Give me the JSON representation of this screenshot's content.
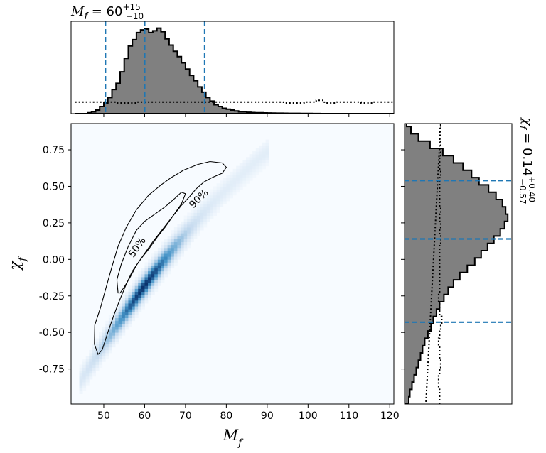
{
  "chart_data": [
    {
      "panel": "joint",
      "type": "heatmap",
      "xlabel": "M_f",
      "ylabel": "χ_f",
      "xlim": [
        42,
        121
      ],
      "ylim": [
        -0.99,
        0.93
      ],
      "xticks": [
        "50",
        "60",
        "70",
        "80",
        "90",
        "100",
        "110",
        "120"
      ],
      "yticks": [
        "0.75",
        "0.50",
        "0.25",
        "0.00",
        "-0.25",
        "-0.50",
        "-0.75"
      ],
      "colormap": "Blues",
      "contours": [
        {
          "label": "50%",
          "points": [
            [
              53.5,
              -0.23
            ],
            [
              53.2,
              -0.14
            ],
            [
              54.3,
              -0.03
            ],
            [
              56,
              0.09
            ],
            [
              58,
              0.2
            ],
            [
              60,
              0.26
            ],
            [
              62.5,
              0.31
            ],
            [
              65,
              0.36
            ],
            [
              67.5,
              0.42
            ],
            [
              69,
              0.46
            ],
            [
              70,
              0.45
            ],
            [
              69,
              0.38
            ],
            [
              67,
              0.3
            ],
            [
              64.5,
              0.21
            ],
            [
              62,
              0.12
            ],
            [
              60,
              0.04
            ],
            [
              58,
              -0.04
            ],
            [
              56.5,
              -0.12
            ],
            [
              55,
              -0.19
            ],
            [
              54,
              -0.23
            ]
          ]
        },
        {
          "label": "90%",
          "points": [
            [
              48.6,
              -0.65
            ],
            [
              47.7,
              -0.58
            ],
            [
              47.8,
              -0.45
            ],
            [
              49.2,
              -0.33
            ],
            [
              50.5,
              -0.2
            ],
            [
              52,
              -0.05
            ],
            [
              53.5,
              0.09
            ],
            [
              55.5,
              0.22
            ],
            [
              58,
              0.34
            ],
            [
              61,
              0.44
            ],
            [
              64,
              0.51
            ],
            [
              66.5,
              0.56
            ],
            [
              69.5,
              0.61
            ],
            [
              73,
              0.65
            ],
            [
              76,
              0.67
            ],
            [
              79,
              0.66
            ],
            [
              80,
              0.63
            ],
            [
              79,
              0.59
            ],
            [
              76.5,
              0.56
            ],
            [
              74.5,
              0.53
            ],
            [
              72.5,
              0.48
            ],
            [
              71,
              0.43
            ],
            [
              69,
              0.37
            ],
            [
              67,
              0.3
            ],
            [
              65,
              0.22
            ],
            [
              63,
              0.15
            ],
            [
              61,
              0.07
            ],
            [
              59,
              0
            ],
            [
              57,
              -0.08
            ],
            [
              55.5,
              -0.17
            ],
            [
              54,
              -0.27
            ],
            [
              52.5,
              -0.38
            ],
            [
              51,
              -0.5
            ],
            [
              49.6,
              -0.62
            ]
          ]
        }
      ]
    },
    {
      "panel": "top-marginal",
      "type": "histogram",
      "variable": "M_f",
      "bin_edges": [
        43,
        44,
        45,
        46,
        47,
        48,
        49,
        50,
        51,
        52,
        53,
        54,
        55,
        56,
        57,
        58,
        59,
        60,
        61,
        62,
        63,
        64,
        65,
        66,
        67,
        68,
        69,
        70,
        71,
        72,
        73,
        74,
        75,
        76,
        77,
        78,
        79,
        80,
        81,
        82,
        83,
        84,
        85,
        86,
        87,
        88,
        89,
        90,
        91,
        92,
        93,
        94,
        95,
        96,
        97,
        98,
        99,
        100,
        101,
        102,
        103,
        104,
        105,
        106,
        107,
        108,
        109,
        110,
        111,
        112,
        113,
        114,
        115,
        116,
        117,
        118,
        119,
        120,
        121
      ],
      "values": [
        0,
        0,
        0,
        1,
        2,
        4,
        8,
        12,
        18,
        27,
        34,
        47,
        62,
        76,
        83,
        91,
        94,
        95,
        91,
        93,
        96,
        92,
        84,
        77,
        70,
        64,
        57,
        50,
        43,
        37,
        30,
        24,
        18,
        14,
        10,
        8,
        6,
        5,
        4,
        3,
        2,
        2,
        1.5,
        1.2,
        1,
        1,
        0.8,
        0.7,
        0.6,
        0.5,
        0.5,
        0.4,
        0.3,
        0.3,
        0.3,
        0.2,
        0.2,
        0.2,
        0.1,
        0.1,
        0,
        0,
        0,
        0,
        0,
        0,
        0,
        0,
        0,
        0,
        0,
        0,
        0,
        0,
        0,
        0,
        0,
        0
      ],
      "prior_values": [
        13,
        13,
        13,
        13,
        13,
        13,
        13,
        13,
        13,
        13,
        12,
        12,
        12,
        12,
        12,
        13,
        13,
        13,
        13,
        13,
        13,
        13,
        13,
        13,
        13,
        13,
        13,
        13,
        13,
        13,
        13,
        13,
        13,
        13,
        13,
        13,
        13,
        13,
        13,
        13,
        13,
        13,
        13,
        13,
        13,
        13,
        13,
        13,
        13,
        13,
        13,
        12,
        12,
        12,
        12,
        12,
        13,
        13,
        13,
        15,
        15,
        12,
        12,
        12,
        13,
        13,
        13,
        13,
        13,
        13,
        12,
        12,
        12,
        13,
        13,
        13,
        13,
        13
      ],
      "median": 60,
      "lower": 50.4,
      "upper": 74.7,
      "title": "M_f = 60^{+15}_{-10}"
    },
    {
      "panel": "right-marginal",
      "type": "histogram",
      "variable": "χ_f",
      "bin_edges": [
        -0.99,
        -0.94,
        -0.89,
        -0.84,
        -0.79,
        -0.74,
        -0.69,
        -0.64,
        -0.59,
        -0.54,
        -0.49,
        -0.44,
        -0.39,
        -0.34,
        -0.29,
        -0.24,
        -0.19,
        -0.14,
        -0.09,
        -0.04,
        0.01,
        0.06,
        0.11,
        0.16,
        0.21,
        0.26,
        0.31,
        0.36,
        0.41,
        0.46,
        0.51,
        0.56,
        0.61,
        0.66,
        0.71,
        0.76,
        0.81,
        0.86,
        0.91,
        0.93
      ],
      "values": [
        4,
        5,
        7,
        9,
        11,
        13,
        15,
        17,
        19,
        22,
        25,
        27,
        30,
        33,
        37,
        41,
        46,
        52,
        59,
        66,
        72,
        78,
        84,
        90,
        94,
        97,
        95,
        92,
        86,
        79,
        70,
        63,
        55,
        46,
        36,
        24,
        13,
        6,
        2
      ],
      "prior_values": [
        33,
        33,
        32,
        32,
        33,
        34,
        33,
        33,
        32,
        33,
        34,
        35,
        33,
        33,
        32,
        33,
        33,
        33,
        33,
        33,
        33,
        33,
        34,
        33,
        34,
        33,
        34,
        33,
        33,
        33,
        33,
        34,
        33,
        33,
        34,
        34,
        33,
        33,
        34
      ],
      "median": 0.14,
      "lower": -0.43,
      "upper": 0.54,
      "title": "χ_f = 0.14^{+0.40}_{-0.57}"
    }
  ],
  "colors": {
    "histogram_fill": "#808080",
    "quantile_line": "#1f77b4",
    "heatmap_low": "#f7fbff",
    "heatmap_high": "#08306b"
  }
}
